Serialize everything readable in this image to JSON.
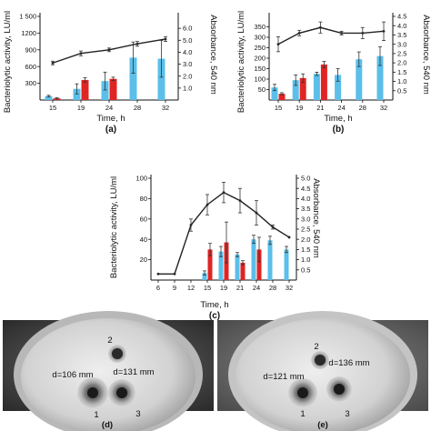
{
  "colors": {
    "blue": "#5bbfea",
    "red": "#e02424",
    "line": "#222222"
  },
  "chart_data": [
    {
      "panel": "(a)",
      "type": "bar",
      "xlabel": "Time, h",
      "ylabel": "Bacteriolytic activity, LU/ml",
      "y2label": "Absorbance, 540 nm",
      "categories": [
        "15",
        "19",
        "24",
        "28",
        "32"
      ],
      "ylim": [
        0,
        1500
      ],
      "yticks": [
        "300",
        "600",
        "900",
        "1200",
        "1 500"
      ],
      "y2lim": [
        0,
        7.0
      ],
      "y2ticks": [
        "1.0",
        "2.0",
        "3.0",
        "4.0",
        "5.0",
        "6.0"
      ],
      "series": [
        {
          "values": [
            70,
            200,
            340,
            760,
            740
          ],
          "errors": [
            15,
            90,
            160,
            280,
            330
          ]
        },
        {
          "values": [
            30,
            360,
            380,
            null,
            null
          ],
          "errors": [
            10,
            40,
            30,
            null,
            null
          ]
        }
      ],
      "line": {
        "values": [
          3.1,
          3.9,
          4.2,
          4.7,
          5.1
        ],
        "errors": [
          0.15,
          0.2,
          0.15,
          0.2,
          0.2
        ]
      }
    },
    {
      "panel": "(b)",
      "type": "bar",
      "xlabel": "Time, h",
      "ylabel": "Bacteriolytic activity, LU/ml",
      "y2label": "Absorbance, 540 nm",
      "categories": [
        "15",
        "19",
        "21",
        "24",
        "28",
        "32"
      ],
      "ylim": [
        0,
        400
      ],
      "yticks": [
        "50",
        "100",
        "150",
        "200",
        "250",
        "300",
        "350"
      ],
      "y2lim": [
        0,
        4.5
      ],
      "y2ticks": [
        "0.5",
        "1.0",
        "1.5",
        "2.0",
        "2.5",
        "3.0",
        "3.5",
        "4.0",
        "4.5"
      ],
      "series": [
        {
          "values": [
            60,
            95,
            125,
            120,
            195,
            210
          ],
          "errors": [
            15,
            25,
            8,
            30,
            35,
            45
          ]
        },
        {
          "values": [
            30,
            105,
            170,
            null,
            null,
            null
          ],
          "errors": [
            5,
            20,
            15,
            null,
            null,
            null
          ]
        }
      ],
      "line": {
        "values": [
          3.0,
          3.6,
          3.9,
          3.6,
          3.6,
          3.7
        ],
        "errors": [
          0.4,
          0.15,
          0.3,
          0.1,
          0.3,
          0.5
        ]
      }
    },
    {
      "panel": "(c)",
      "type": "bar",
      "xlabel": "Time, h",
      "ylabel": "Bacteriolytic activity, LU/ml",
      "y2label": "Absorbance, 540 nm",
      "categories": [
        "6",
        "9",
        "12",
        "15",
        "19",
        "21",
        "24",
        "28",
        "32"
      ],
      "ylim": [
        0,
        100
      ],
      "yticks": [
        "20",
        "40",
        "60",
        "80",
        "100"
      ],
      "y2lim": [
        0,
        5.0
      ],
      "y2ticks": [
        "0.5",
        "1.0",
        "1.5",
        "2.0",
        "2.5",
        "3.0",
        "3.5",
        "4.0",
        "4.5",
        "5.0"
      ],
      "series": [
        {
          "values": [
            null,
            null,
            null,
            7,
            28,
            25,
            40,
            39,
            30
          ],
          "errors": [
            null,
            null,
            null,
            2,
            5,
            2,
            4,
            4,
            3
          ]
        },
        {
          "values": [
            null,
            null,
            null,
            30,
            37,
            17,
            30,
            null,
            null
          ],
          "errors": [
            null,
            null,
            null,
            6,
            20,
            2,
            12,
            null,
            null
          ]
        }
      ],
      "line": {
        "values": [
          0.3,
          0.3,
          2.7,
          3.7,
          4.3,
          3.9,
          3.3,
          2.6,
          2.1
        ],
        "errors": [
          0,
          0,
          0.3,
          0.5,
          0.5,
          0.6,
          0.6,
          0.1,
          0
        ]
      }
    }
  ],
  "dishes": [
    {
      "panel": "(d)",
      "wells": [
        "1",
        "2",
        "3"
      ],
      "diameters": [
        "d=106 mm",
        "d=131 mm"
      ]
    },
    {
      "panel": "(e)",
      "wells": [
        "1",
        "2",
        "3"
      ],
      "diameters": [
        "d=121 mm",
        "d=136 mm"
      ]
    }
  ]
}
